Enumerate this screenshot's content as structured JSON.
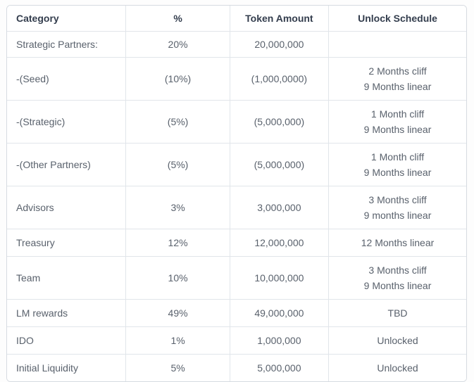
{
  "colors": {
    "header_text": "#333d4d",
    "body_text": "#59616c",
    "border": "#e1e5ea",
    "outer_border": "#d6dbe1",
    "background": "#ffffff"
  },
  "chart_data": {
    "type": "table",
    "title": "",
    "columns": [
      "Category",
      "%",
      "Token Amount",
      "Unlock Schedule"
    ],
    "rows": [
      {
        "category": "Strategic Partners:",
        "percent": "20%",
        "amount": "20,000,000",
        "unlock": []
      },
      {
        "category": "-(Seed)",
        "percent": "(10%)",
        "amount": "(1,000,0000)",
        "unlock": [
          "2 Months cliff",
          "9 Months linear"
        ]
      },
      {
        "category": "-(Strategic)",
        "percent": "(5%)",
        "amount": "(5,000,000)",
        "unlock": [
          "1 Month cliff",
          "9 Months linear"
        ]
      },
      {
        "category": "-(Other Partners)",
        "percent": "(5%)",
        "amount": "(5,000,000)",
        "unlock": [
          "1 Month cliff",
          "9 Months linear"
        ]
      },
      {
        "category": "Advisors",
        "percent": "3%",
        "amount": "3,000,000",
        "unlock": [
          "3 Months cliff",
          "9 months linear"
        ]
      },
      {
        "category": "Treasury",
        "percent": "12%",
        "amount": "12,000,000",
        "unlock": [
          "12 Months linear"
        ]
      },
      {
        "category": "Team",
        "percent": "10%",
        "amount": "10,000,000",
        "unlock": [
          "3 Months cliff",
          "9 Months linear"
        ]
      },
      {
        "category": "LM rewards",
        "percent": "49%",
        "amount": "49,000,000",
        "unlock": [
          "TBD"
        ]
      },
      {
        "category": "IDO",
        "percent": "1%",
        "amount": "1,000,000",
        "unlock": [
          "Unlocked"
        ]
      },
      {
        "category": "Initial Liquidity",
        "percent": "5%",
        "amount": "5,000,000",
        "unlock": [
          "Unlocked"
        ]
      }
    ]
  }
}
